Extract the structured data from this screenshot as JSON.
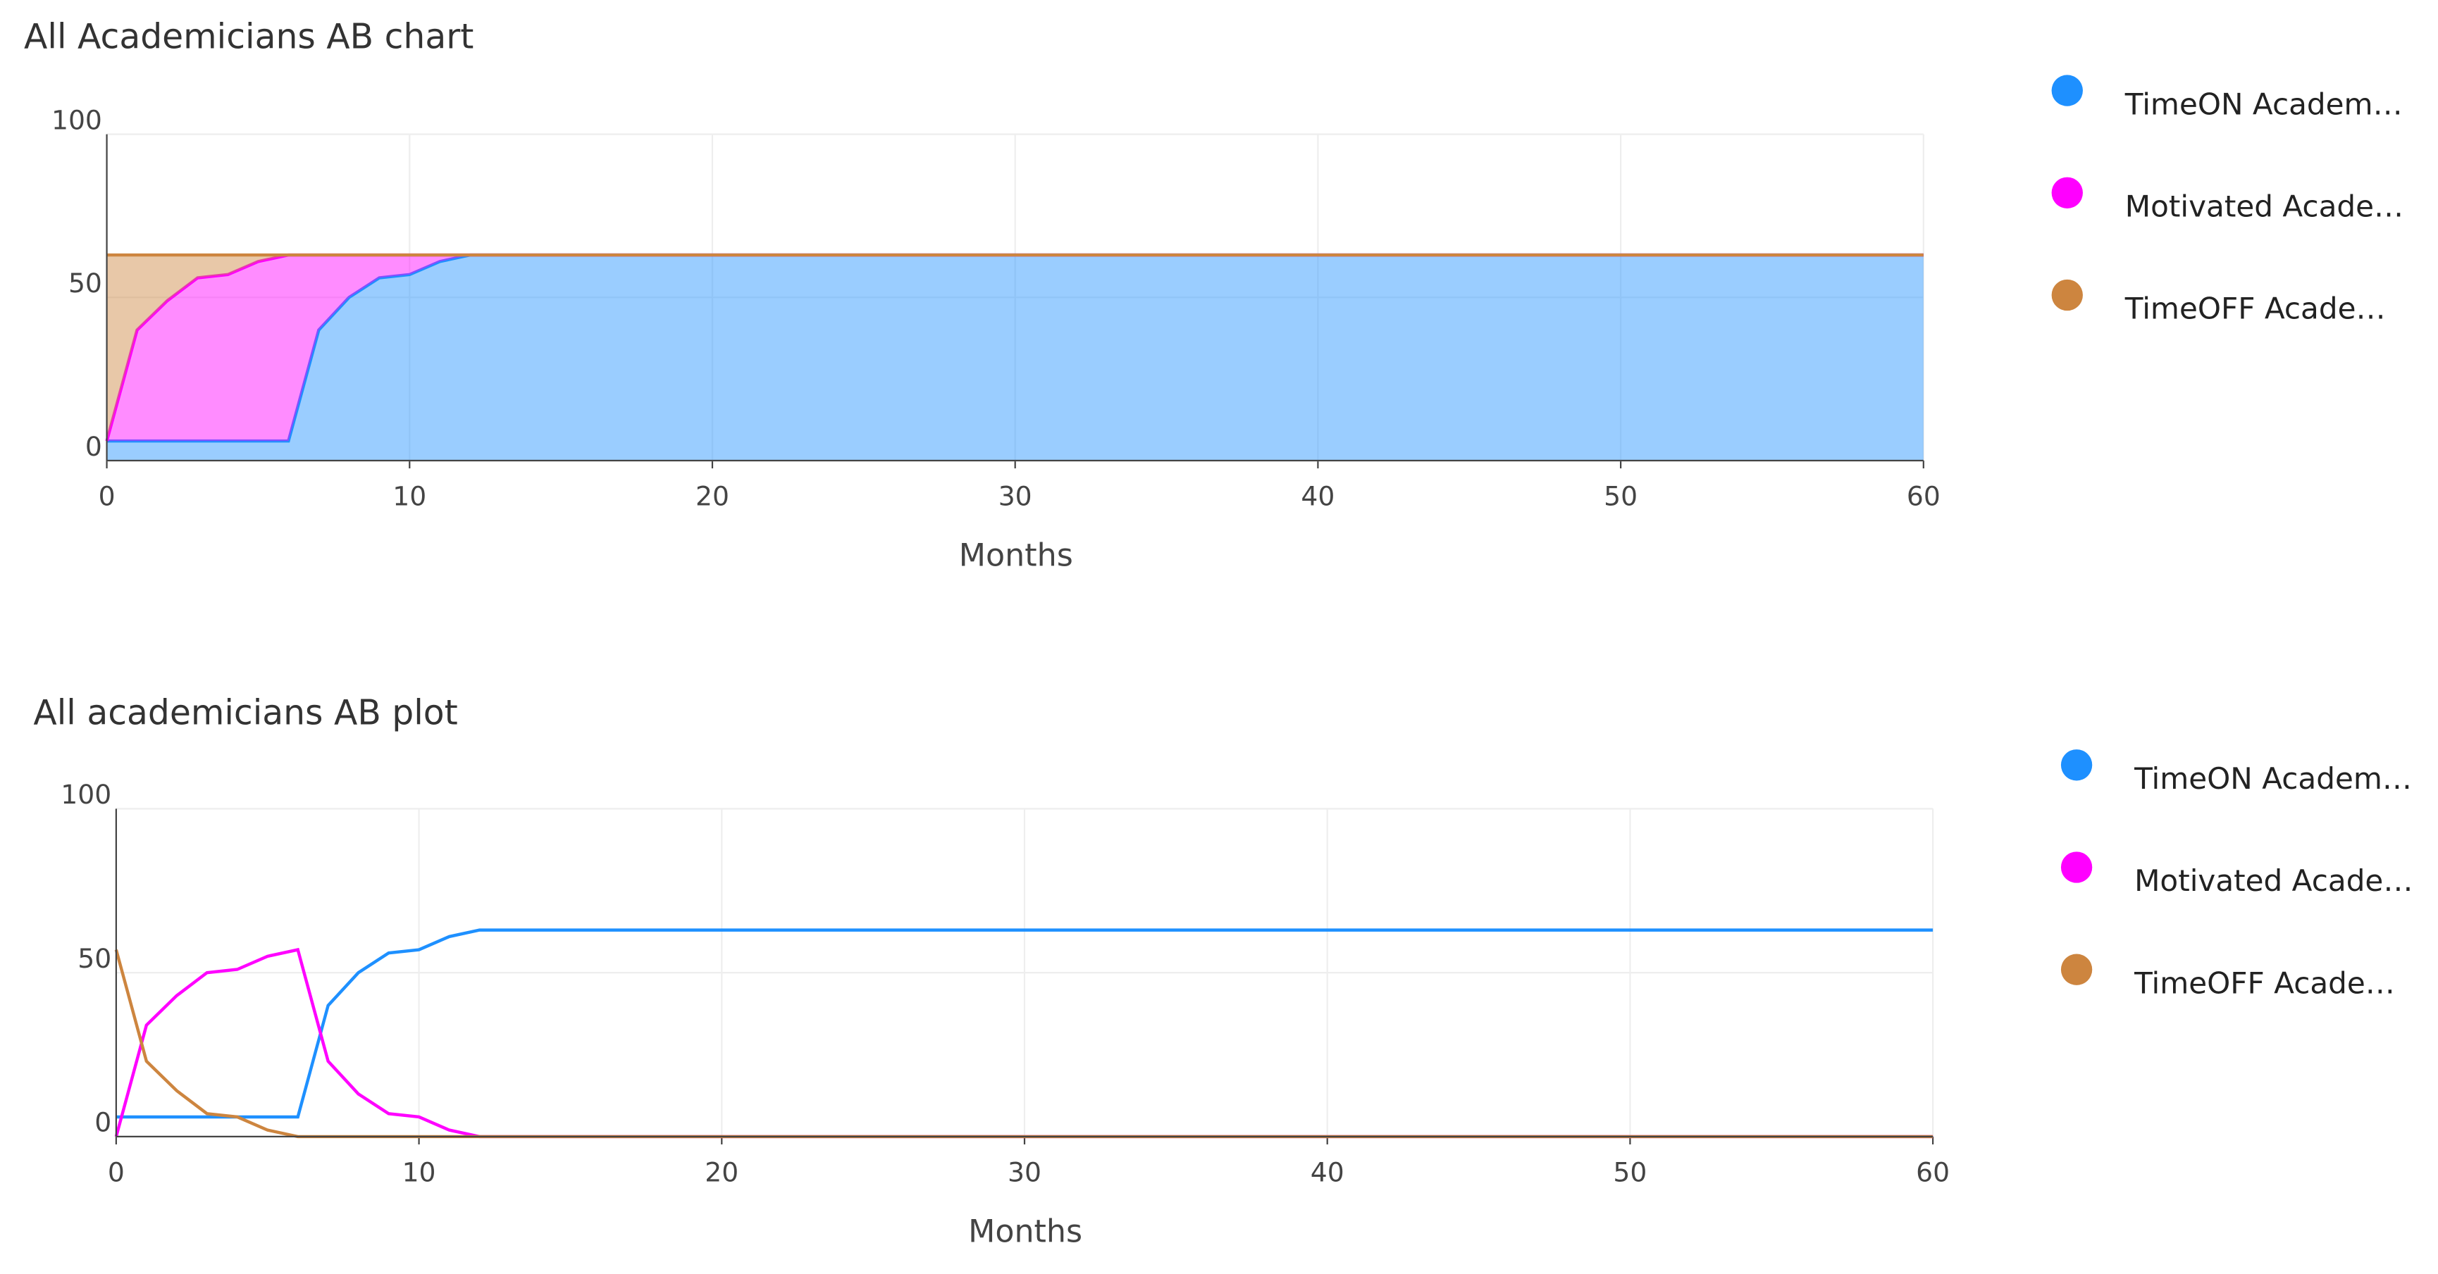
{
  "chart_data": [
    {
      "type": "area",
      "stacked": true,
      "title": "All Academicians AB chart",
      "x_label": "Months",
      "x": [
        0,
        1,
        2,
        3,
        4,
        5,
        6,
        7,
        8,
        9,
        10,
        11,
        12,
        60
      ],
      "series": [
        {
          "name": "TimeON Academ…",
          "color": "#1e90ff",
          "values": [
            6,
            6,
            6,
            6,
            6,
            6,
            6,
            40,
            50,
            56,
            57,
            61,
            63,
            63
          ]
        },
        {
          "name": "Motivated Acade…",
          "color": "#ff00ff",
          "values": [
            0,
            34,
            43,
            50,
            51,
            55,
            57,
            23,
            13,
            7,
            6,
            2,
            0,
            0
          ]
        },
        {
          "name": "TimeOFF Acade…",
          "color": "#cd853f",
          "values": [
            57,
            23,
            14,
            7,
            6,
            2,
            0,
            0,
            0,
            0,
            0,
            0,
            0,
            0
          ]
        }
      ],
      "xlim": [
        0,
        60
      ],
      "xticks": [
        0,
        10,
        20,
        30,
        40,
        50,
        60
      ],
      "ylim": [
        0,
        100
      ],
      "yticks": [
        0,
        50,
        100
      ],
      "grid": true
    },
    {
      "type": "line",
      "title": "All academicians AB plot",
      "x_label": "Months",
      "x": [
        0,
        1,
        2,
        3,
        4,
        5,
        6,
        7,
        8,
        9,
        10,
        11,
        12,
        60
      ],
      "series": [
        {
          "name": "TimeON Academ…",
          "color": "#1e90ff",
          "values": [
            6,
            6,
            6,
            6,
            6,
            6,
            6,
            40,
            50,
            56,
            57,
            61,
            63,
            63
          ]
        },
        {
          "name": "Motivated Acade…",
          "color": "#ff00ff",
          "values": [
            0,
            34,
            43,
            50,
            51,
            55,
            57,
            23,
            13,
            7,
            6,
            2,
            0,
            0
          ]
        },
        {
          "name": "TimeOFF Acade…",
          "color": "#cd853f",
          "values": [
            57,
            23,
            14,
            7,
            6,
            2,
            0,
            0,
            0,
            0,
            0,
            0,
            0,
            0
          ]
        }
      ],
      "xlim": [
        0,
        60
      ],
      "xticks": [
        0,
        10,
        20,
        30,
        40,
        50,
        60
      ],
      "ylim": [
        0,
        100
      ],
      "yticks": [
        0,
        50,
        100
      ],
      "grid": true
    }
  ]
}
